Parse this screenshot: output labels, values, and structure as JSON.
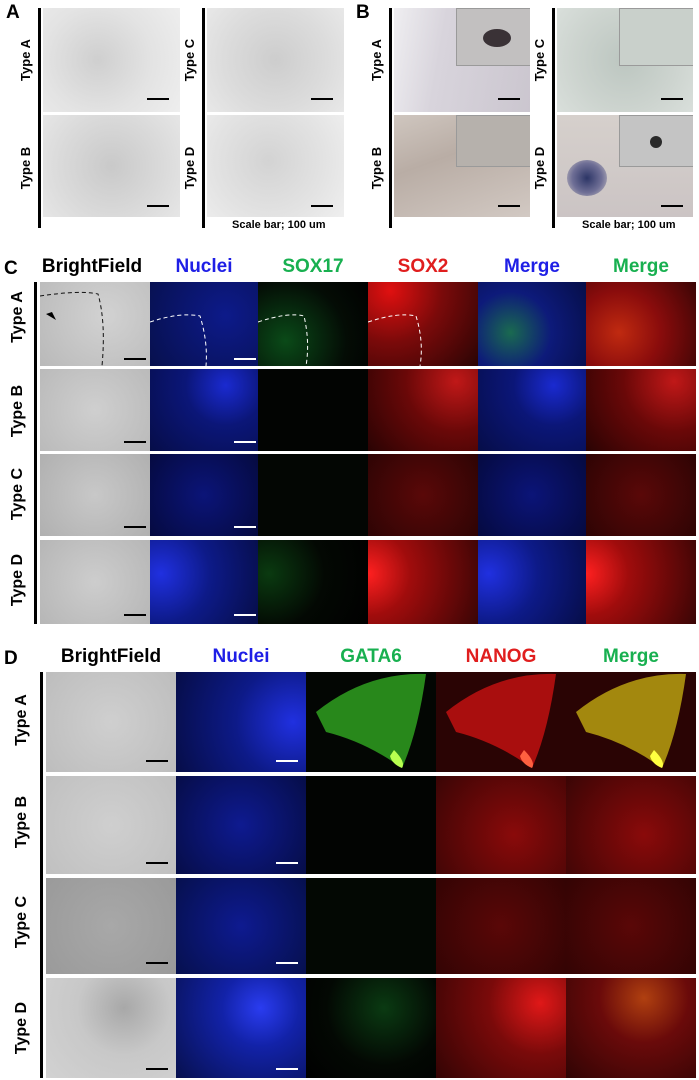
{
  "panel_labels": {
    "a": "A",
    "b": "B",
    "c": "C",
    "d": "D"
  },
  "row_labels": {
    "type_a": "Type A",
    "type_b": "Type B",
    "type_c": "Type C",
    "type_d": "Type D"
  },
  "scale_notes": {
    "panel_a": "Scale bar; 100 um",
    "panel_b": "Scale bar; 100 um"
  },
  "panel_c": {
    "headers": [
      {
        "text": "BrightField",
        "color": "#000000"
      },
      {
        "text": "Nuclei",
        "color": "#1f1fe6"
      },
      {
        "text": "SOX17",
        "color": "#18b050"
      },
      {
        "text": "SOX2",
        "color": "#e01e1e"
      },
      {
        "text": "Merge",
        "color": "#1f1fe6"
      },
      {
        "text": "Merge",
        "color": "#18b050"
      }
    ]
  },
  "panel_d": {
    "headers": [
      {
        "text": "BrightField",
        "color": "#000000"
      },
      {
        "text": "Nuclei",
        "color": "#1f1fe6"
      },
      {
        "text": "GATA6",
        "color": "#18b050"
      },
      {
        "text": "NANOG",
        "color": "#e01e1e"
      },
      {
        "text": "Merge",
        "color": "#18b050"
      }
    ]
  }
}
